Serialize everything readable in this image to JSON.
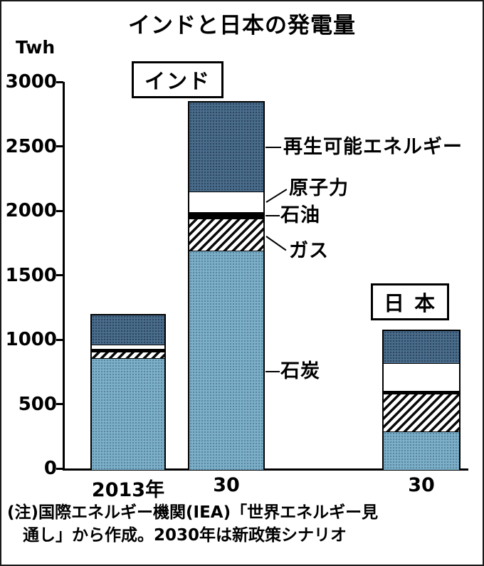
{
  "title": "インドと日本の発電量",
  "unit_label": "Twh",
  "group_labels": {
    "india": "インド",
    "japan": "日 本"
  },
  "note_lines": [
    "(注)国際エネルギー機関(IEA)「世界エネルギー見",
    "通し」から作成。2030年は新政策シナリオ"
  ],
  "chart_data": {
    "type": "bar",
    "stacked": true,
    "title": "インドと日本の発電量",
    "ylabel": "Twh",
    "unit": "TWh",
    "ylim": [
      0,
      3000
    ],
    "yticks": [
      0,
      500,
      1000,
      1500,
      2000,
      2500,
      3000
    ],
    "categories": [
      "2013年",
      "30",
      "30"
    ],
    "bar_groups": [
      "インド",
      "インド",
      "日本"
    ],
    "series": [
      {
        "name": "石炭",
        "key": "coal",
        "values": [
          870,
          1700,
          300
        ]
      },
      {
        "name": "ガス",
        "key": "gas",
        "values": [
          48,
          250,
          290
        ]
      },
      {
        "name": "石油",
        "key": "oil",
        "values": [
          23,
          50,
          25
        ]
      },
      {
        "name": "原子力",
        "key": "nuclear",
        "values": [
          34,
          160,
          215
        ]
      },
      {
        "name": "再生可能エネルギー",
        "key": "renewables",
        "values": [
          225,
          690,
          250
        ]
      }
    ],
    "totals": [
      1200,
      2850,
      1080
    ],
    "colors": {
      "coal": "#7cb0c8",
      "gas_hatch_fg": "#0a0a0a",
      "gas_hatch_bg": "#ffffff",
      "oil": "#000000",
      "nuclear": "#ffffff",
      "renewables": "#4a6d8c"
    },
    "legend_position": "right-of-india-2030-bar",
    "grid": false
  }
}
